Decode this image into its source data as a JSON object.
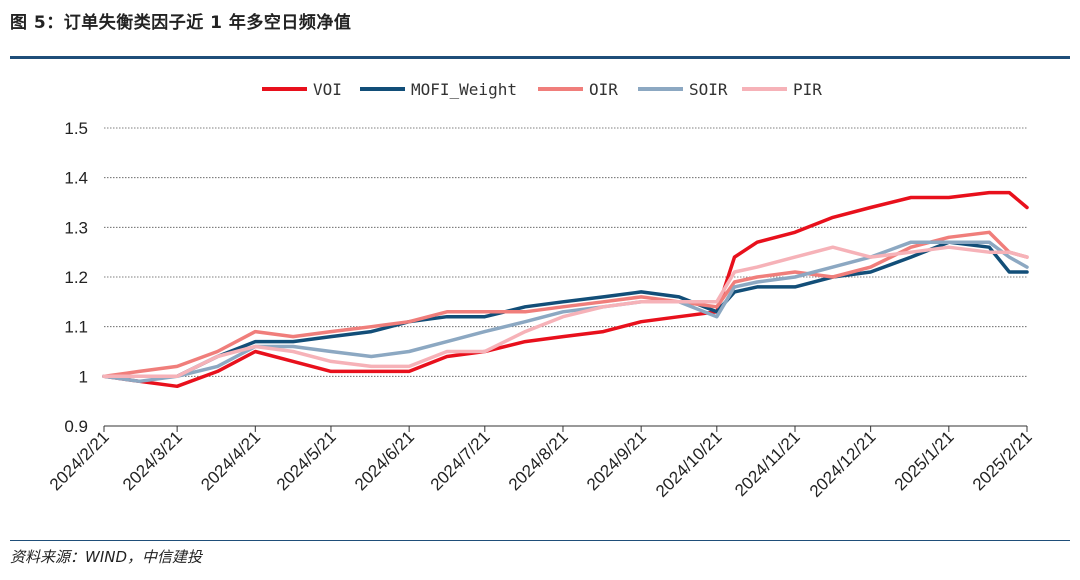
{
  "header": {
    "title": "图 5：订单失衡类因子近 1 年多空日频净值"
  },
  "footer": {
    "source": "资料来源：WIND，中信建投"
  },
  "chart_data": {
    "type": "line",
    "title": "图 5：订单失衡类因子近 1 年多空日频净值",
    "xlabel": "",
    "ylabel": "",
    "ylim": [
      0.9,
      1.5
    ],
    "yticks": [
      "0.9",
      "1",
      "1.1",
      "1.2",
      "1.3",
      "1.4",
      "1.5"
    ],
    "xticks": [
      "2024/2/21",
      "2024/3/21",
      "2024/4/21",
      "2024/5/21",
      "2024/6/21",
      "2024/7/21",
      "2024/8/21",
      "2024/9/21",
      "2024/10/21",
      "2024/11/21",
      "2024/12/21",
      "2025/1/21",
      "2025/2/21"
    ],
    "grid": true,
    "legend_position": "top",
    "x": [
      "2024/2/21",
      "2024/3/6",
      "2024/3/21",
      "2024/4/6",
      "2024/4/21",
      "2024/5/6",
      "2024/5/21",
      "2024/6/6",
      "2024/6/21",
      "2024/7/6",
      "2024/7/21",
      "2024/8/6",
      "2024/8/21",
      "2024/9/6",
      "2024/9/21",
      "2024/10/6",
      "2024/10/21",
      "2024/10/28",
      "2024/11/6",
      "2024/11/21",
      "2024/12/6",
      "2024/12/21",
      "2025/1/6",
      "2025/1/21",
      "2025/2/6",
      "2025/2/14",
      "2025/2/21"
    ],
    "series": [
      {
        "name": "VOI",
        "color": "#e8101c",
        "values": [
          1.0,
          0.99,
          0.98,
          1.01,
          1.05,
          1.03,
          1.01,
          1.01,
          1.01,
          1.04,
          1.05,
          1.07,
          1.08,
          1.09,
          1.11,
          1.12,
          1.13,
          1.24,
          1.27,
          1.29,
          1.32,
          1.34,
          1.36,
          1.36,
          1.37,
          1.37,
          1.34
        ]
      },
      {
        "name": "MOFI_Weight",
        "color": "#124e78",
        "values": [
          1.0,
          1.0,
          1.0,
          1.04,
          1.07,
          1.07,
          1.08,
          1.09,
          1.11,
          1.12,
          1.12,
          1.14,
          1.15,
          1.16,
          1.17,
          1.16,
          1.13,
          1.17,
          1.18,
          1.18,
          1.2,
          1.21,
          1.24,
          1.27,
          1.26,
          1.21,
          1.21
        ]
      },
      {
        "name": "OIR",
        "color": "#f07e7b",
        "values": [
          1.0,
          1.01,
          1.02,
          1.05,
          1.09,
          1.08,
          1.09,
          1.1,
          1.11,
          1.13,
          1.13,
          1.13,
          1.14,
          1.15,
          1.16,
          1.15,
          1.14,
          1.19,
          1.2,
          1.21,
          1.2,
          1.22,
          1.26,
          1.28,
          1.29,
          1.25,
          1.24
        ]
      },
      {
        "name": "SOIR",
        "color": "#8ca8c2",
        "values": [
          1.0,
          0.99,
          1.0,
          1.02,
          1.06,
          1.06,
          1.05,
          1.04,
          1.05,
          1.07,
          1.09,
          1.11,
          1.13,
          1.14,
          1.15,
          1.15,
          1.12,
          1.18,
          1.19,
          1.2,
          1.22,
          1.24,
          1.27,
          1.27,
          1.27,
          1.24,
          1.22
        ]
      },
      {
        "name": "PIR",
        "color": "#f6b2b8",
        "values": [
          1.0,
          1.0,
          1.0,
          1.04,
          1.06,
          1.05,
          1.03,
          1.02,
          1.02,
          1.05,
          1.05,
          1.09,
          1.12,
          1.14,
          1.15,
          1.15,
          1.15,
          1.21,
          1.22,
          1.24,
          1.26,
          1.24,
          1.25,
          1.26,
          1.25,
          1.25,
          1.24
        ]
      }
    ]
  }
}
